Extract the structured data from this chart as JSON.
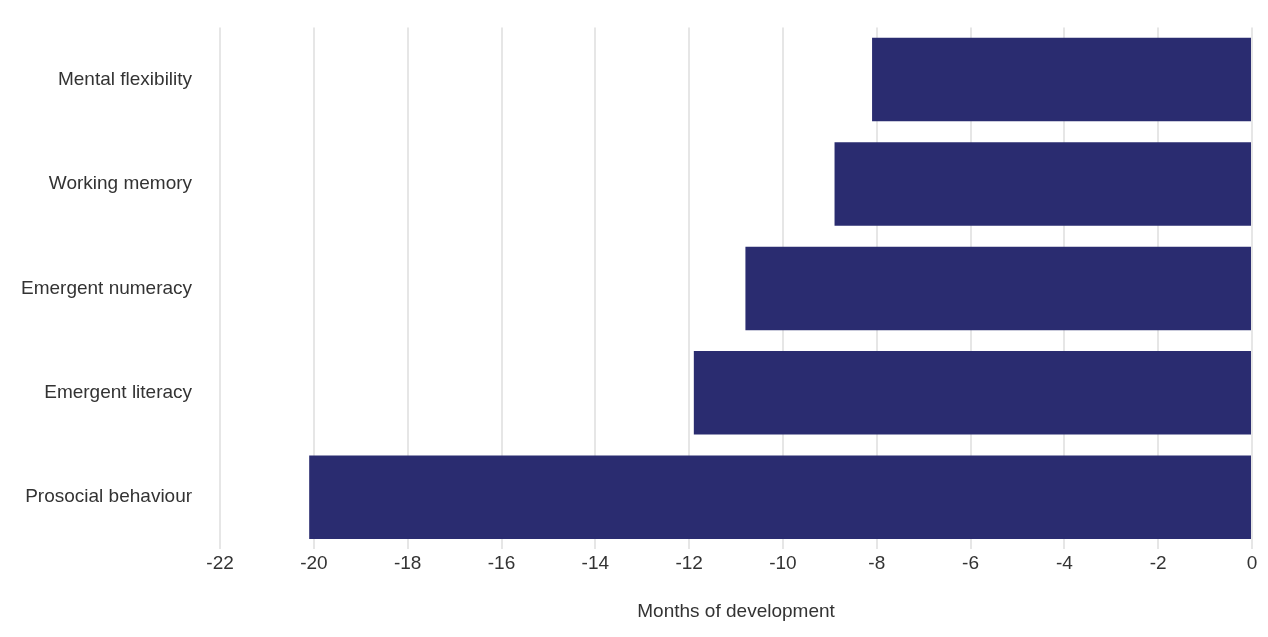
{
  "chart_data": {
    "type": "bar",
    "orientation": "horizontal",
    "xlabel": "Months of development",
    "categories": [
      "Mental flexibility",
      "Working memory",
      "Emergent numeracy",
      "Emergent literacy",
      "Prosocial behaviour"
    ],
    "values": [
      -8.1,
      -8.9,
      -10.8,
      -11.9,
      -20.1
    ],
    "color": "#2a2c70",
    "xlim": [
      -22,
      0
    ],
    "xticks": [
      -22,
      -20,
      -18,
      -16,
      -14,
      -12,
      -10,
      -8,
      -6,
      -4,
      -2,
      0
    ],
    "grid": "x",
    "legend": false
  }
}
